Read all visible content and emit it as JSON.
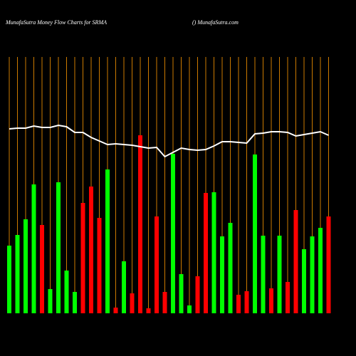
{
  "chart_data": {
    "type": "bar",
    "title": "MunafaSutra  Money Flow  Charts for SRMA",
    "subtitle": "() MunafaSutra.com",
    "categories": [
      null,
      null,
      null,
      null,
      null,
      null,
      null,
      null,
      null,
      null,
      null,
      null,
      null,
      null,
      null,
      null,
      null,
      null,
      null,
      null,
      null,
      null,
      null,
      null,
      null,
      null,
      null,
      null,
      null,
      null,
      null,
      null,
      null,
      null,
      null,
      null,
      null,
      null,
      null,
      null
    ],
    "series": [
      {
        "type": "bar",
        "colors": [
          "#00ff00",
          "#00ff00",
          "#00ff00",
          "#00ff00",
          "#ff0000",
          "#00ff00",
          "#00ff00",
          "#00ff00",
          "#00ff00",
          "#ff0000",
          "#ff0000",
          "#ff0000",
          "#00ff00",
          "#ff0000",
          "#00ff00",
          "#ff0000",
          "#ff0000",
          "#ff0000",
          "#ff0000",
          "#ff0000",
          "#00ff00",
          "#00ff00",
          "#00ff00",
          "#ff0000",
          "#ff0000",
          "#00ff00",
          "#00ff00",
          "#00ff00",
          "#ff0000",
          "#ff0000",
          "#00ff00",
          "#00ff00",
          "#ff0000",
          "#00ff00",
          "#ff0000",
          "#ff0000",
          "#00ff00",
          "#00ff00",
          "#00ff00",
          "#ff0000"
        ],
        "values": [
          95,
          110,
          132,
          181,
          124,
          34,
          184,
          60,
          30,
          155,
          178,
          134,
          202,
          8,
          73,
          28,
          250,
          7,
          136,
          30,
          224,
          55,
          11,
          52,
          169,
          170,
          108,
          127,
          26,
          31,
          223,
          109,
          35,
          109,
          44,
          145,
          90,
          108,
          120,
          136
        ]
      },
      {
        "type": "line",
        "color": "#ffffff",
        "values": [
          259,
          260,
          260,
          263,
          261,
          261,
          264,
          262,
          254,
          254,
          247,
          242,
          237,
          238,
          237,
          236,
          234,
          232,
          233,
          220,
          226,
          232,
          230,
          229,
          230,
          235,
          241,
          241,
          240,
          239,
          252,
          253,
          255,
          255,
          254,
          249,
          251,
          253,
          255,
          250
        ]
      }
    ],
    "ylim": [
      0,
      360
    ],
    "grid_color": "#cc7a00"
  }
}
